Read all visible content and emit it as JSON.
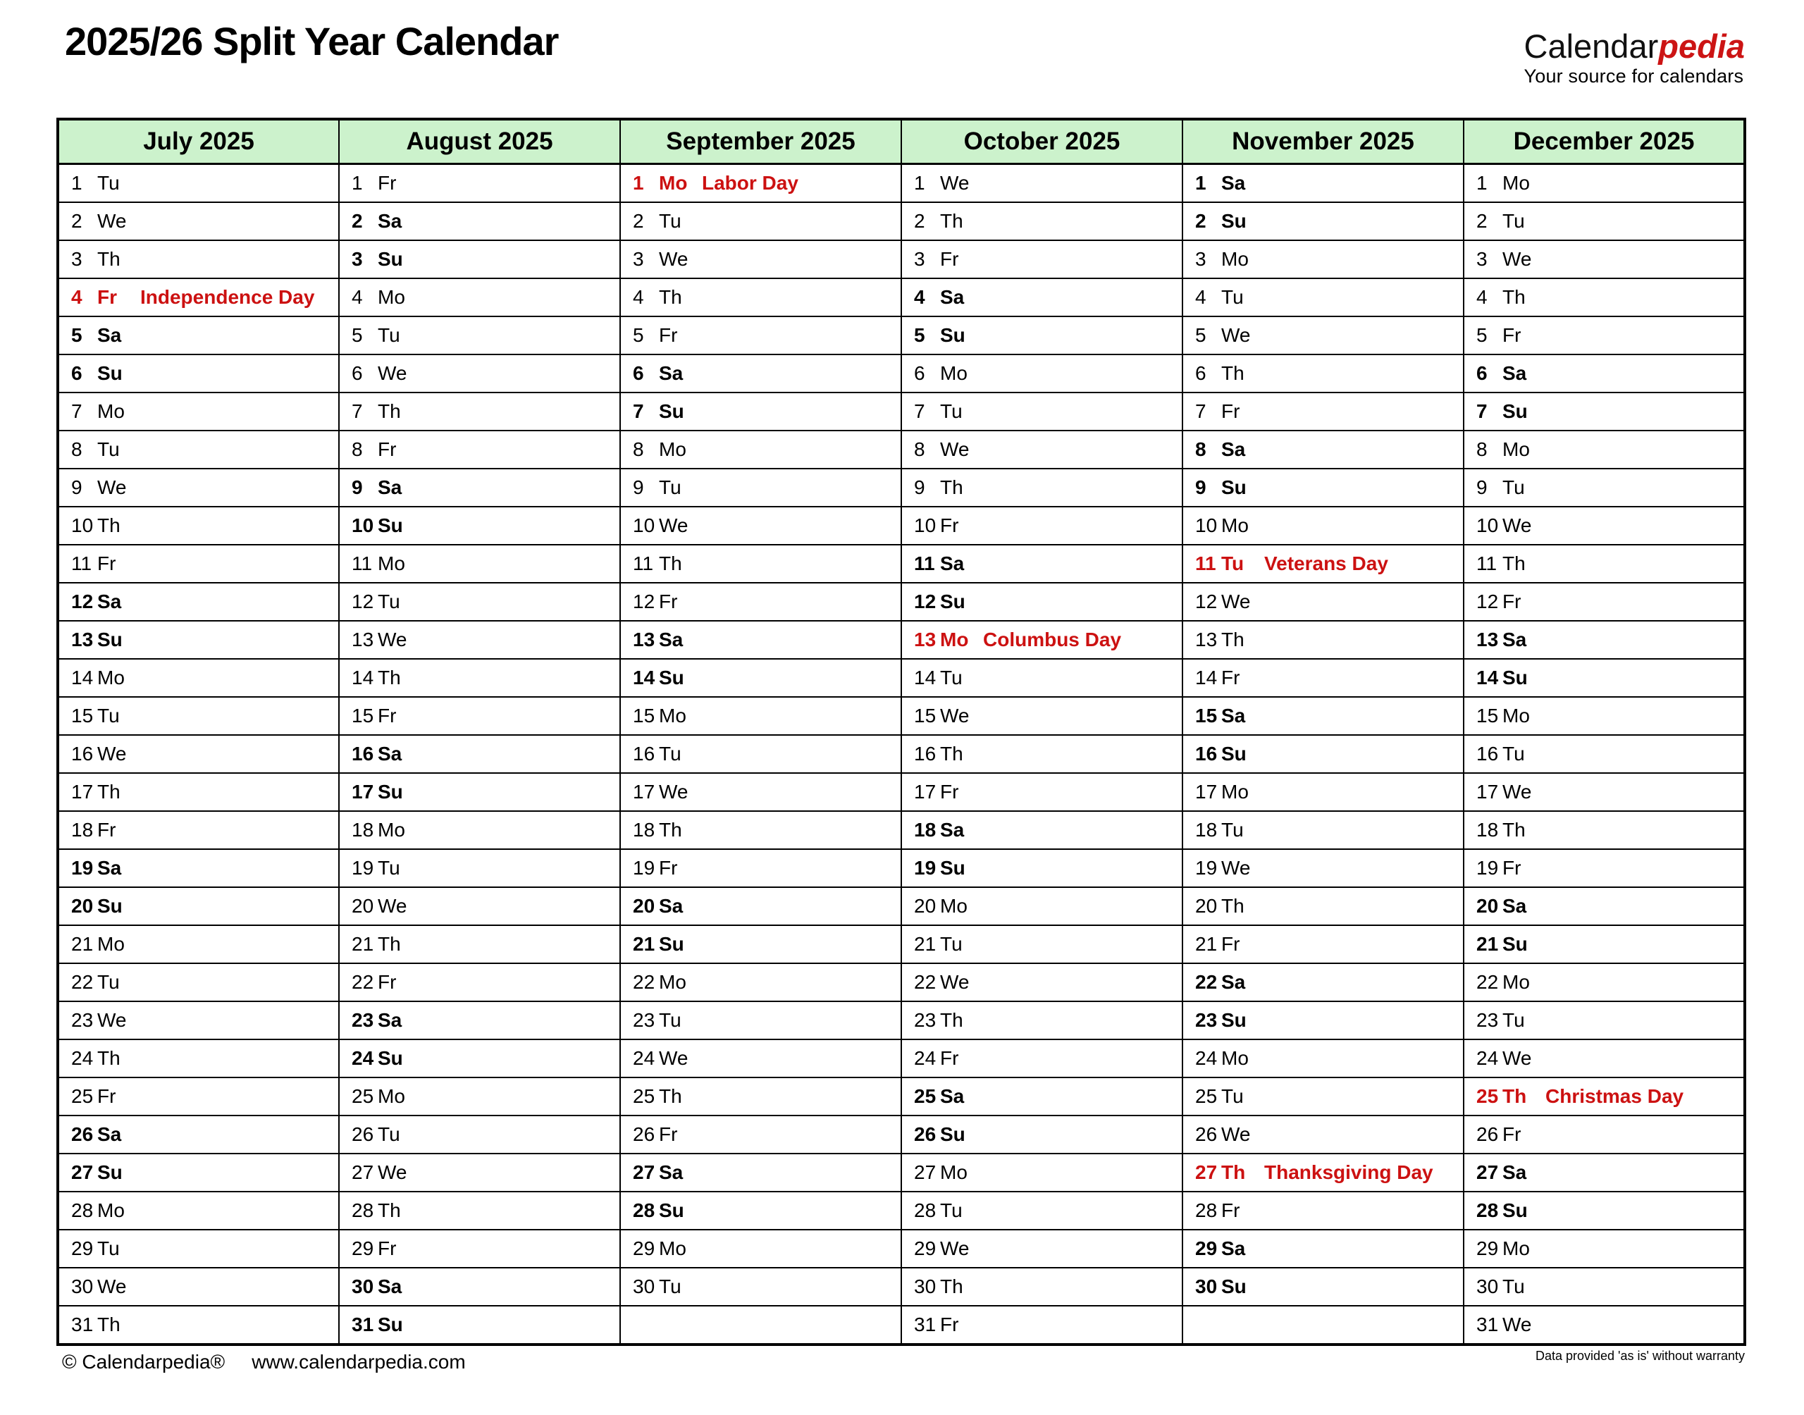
{
  "page": {
    "title": "2025/26 Split Year Calendar"
  },
  "brand": {
    "name_black": "Calendar",
    "name_red": "pedia",
    "tagline": "Your source for calendars"
  },
  "footer": {
    "copyright": "© Calendarpedia®",
    "url": "www.calendarpedia.com",
    "disclaimer": "Data provided 'as is' without warranty"
  },
  "colors": {
    "month_header_bg": "#ccf2cc",
    "saturday_bg": "#fbfbc9",
    "sunday_bg": "#f9c27e",
    "holiday_bg": "#f8d2d2",
    "holiday_text": "#cc1111",
    "empty_bg": "#dcdcdc",
    "brand_red": "#cc1414",
    "border": "#000000"
  },
  "calendar": {
    "rows": 31,
    "months": [
      {
        "name": "July 2025",
        "days": [
          [
            "1",
            "Tu",
            ""
          ],
          [
            "2",
            "We",
            ""
          ],
          [
            "3",
            "Th",
            ""
          ],
          [
            "4",
            "Fr",
            "Independence Day"
          ],
          [
            "5",
            "Sa",
            ""
          ],
          [
            "6",
            "Su",
            ""
          ],
          [
            "7",
            "Mo",
            ""
          ],
          [
            "8",
            "Tu",
            ""
          ],
          [
            "9",
            "We",
            ""
          ],
          [
            "10",
            "Th",
            ""
          ],
          [
            "11",
            "Fr",
            ""
          ],
          [
            "12",
            "Sa",
            ""
          ],
          [
            "13",
            "Su",
            ""
          ],
          [
            "14",
            "Mo",
            ""
          ],
          [
            "15",
            "Tu",
            ""
          ],
          [
            "16",
            "We",
            ""
          ],
          [
            "17",
            "Th",
            ""
          ],
          [
            "18",
            "Fr",
            ""
          ],
          [
            "19",
            "Sa",
            ""
          ],
          [
            "20",
            "Su",
            ""
          ],
          [
            "21",
            "Mo",
            ""
          ],
          [
            "22",
            "Tu",
            ""
          ],
          [
            "23",
            "We",
            ""
          ],
          [
            "24",
            "Th",
            ""
          ],
          [
            "25",
            "Fr",
            ""
          ],
          [
            "26",
            "Sa",
            ""
          ],
          [
            "27",
            "Su",
            ""
          ],
          [
            "28",
            "Mo",
            ""
          ],
          [
            "29",
            "Tu",
            ""
          ],
          [
            "30",
            "We",
            ""
          ],
          [
            "31",
            "Th",
            ""
          ]
        ]
      },
      {
        "name": "August 2025",
        "days": [
          [
            "1",
            "Fr",
            ""
          ],
          [
            "2",
            "Sa",
            ""
          ],
          [
            "3",
            "Su",
            ""
          ],
          [
            "4",
            "Mo",
            ""
          ],
          [
            "5",
            "Tu",
            ""
          ],
          [
            "6",
            "We",
            ""
          ],
          [
            "7",
            "Th",
            ""
          ],
          [
            "8",
            "Fr",
            ""
          ],
          [
            "9",
            "Sa",
            ""
          ],
          [
            "10",
            "Su",
            ""
          ],
          [
            "11",
            "Mo",
            ""
          ],
          [
            "12",
            "Tu",
            ""
          ],
          [
            "13",
            "We",
            ""
          ],
          [
            "14",
            "Th",
            ""
          ],
          [
            "15",
            "Fr",
            ""
          ],
          [
            "16",
            "Sa",
            ""
          ],
          [
            "17",
            "Su",
            ""
          ],
          [
            "18",
            "Mo",
            ""
          ],
          [
            "19",
            "Tu",
            ""
          ],
          [
            "20",
            "We",
            ""
          ],
          [
            "21",
            "Th",
            ""
          ],
          [
            "22",
            "Fr",
            ""
          ],
          [
            "23",
            "Sa",
            ""
          ],
          [
            "24",
            "Su",
            ""
          ],
          [
            "25",
            "Mo",
            ""
          ],
          [
            "26",
            "Tu",
            ""
          ],
          [
            "27",
            "We",
            ""
          ],
          [
            "28",
            "Th",
            ""
          ],
          [
            "29",
            "Fr",
            ""
          ],
          [
            "30",
            "Sa",
            ""
          ],
          [
            "31",
            "Su",
            ""
          ]
        ]
      },
      {
        "name": "September 2025",
        "days": [
          [
            "1",
            "Mo",
            "Labor Day"
          ],
          [
            "2",
            "Tu",
            ""
          ],
          [
            "3",
            "We",
            ""
          ],
          [
            "4",
            "Th",
            ""
          ],
          [
            "5",
            "Fr",
            ""
          ],
          [
            "6",
            "Sa",
            ""
          ],
          [
            "7",
            "Su",
            ""
          ],
          [
            "8",
            "Mo",
            ""
          ],
          [
            "9",
            "Tu",
            ""
          ],
          [
            "10",
            "We",
            ""
          ],
          [
            "11",
            "Th",
            ""
          ],
          [
            "12",
            "Fr",
            ""
          ],
          [
            "13",
            "Sa",
            ""
          ],
          [
            "14",
            "Su",
            ""
          ],
          [
            "15",
            "Mo",
            ""
          ],
          [
            "16",
            "Tu",
            ""
          ],
          [
            "17",
            "We",
            ""
          ],
          [
            "18",
            "Th",
            ""
          ],
          [
            "19",
            "Fr",
            ""
          ],
          [
            "20",
            "Sa",
            ""
          ],
          [
            "21",
            "Su",
            ""
          ],
          [
            "22",
            "Mo",
            ""
          ],
          [
            "23",
            "Tu",
            ""
          ],
          [
            "24",
            "We",
            ""
          ],
          [
            "25",
            "Th",
            ""
          ],
          [
            "26",
            "Fr",
            ""
          ],
          [
            "27",
            "Sa",
            ""
          ],
          [
            "28",
            "Su",
            ""
          ],
          [
            "29",
            "Mo",
            ""
          ],
          [
            "30",
            "Tu",
            ""
          ]
        ]
      },
      {
        "name": "October 2025",
        "days": [
          [
            "1",
            "We",
            ""
          ],
          [
            "2",
            "Th",
            ""
          ],
          [
            "3",
            "Fr",
            ""
          ],
          [
            "4",
            "Sa",
            ""
          ],
          [
            "5",
            "Su",
            ""
          ],
          [
            "6",
            "Mo",
            ""
          ],
          [
            "7",
            "Tu",
            ""
          ],
          [
            "8",
            "We",
            ""
          ],
          [
            "9",
            "Th",
            ""
          ],
          [
            "10",
            "Fr",
            ""
          ],
          [
            "11",
            "Sa",
            ""
          ],
          [
            "12",
            "Su",
            ""
          ],
          [
            "13",
            "Mo",
            "Columbus Day"
          ],
          [
            "14",
            "Tu",
            ""
          ],
          [
            "15",
            "We",
            ""
          ],
          [
            "16",
            "Th",
            ""
          ],
          [
            "17",
            "Fr",
            ""
          ],
          [
            "18",
            "Sa",
            ""
          ],
          [
            "19",
            "Su",
            ""
          ],
          [
            "20",
            "Mo",
            ""
          ],
          [
            "21",
            "Tu",
            ""
          ],
          [
            "22",
            "We",
            ""
          ],
          [
            "23",
            "Th",
            ""
          ],
          [
            "24",
            "Fr",
            ""
          ],
          [
            "25",
            "Sa",
            ""
          ],
          [
            "26",
            "Su",
            ""
          ],
          [
            "27",
            "Mo",
            ""
          ],
          [
            "28",
            "Tu",
            ""
          ],
          [
            "29",
            "We",
            ""
          ],
          [
            "30",
            "Th",
            ""
          ],
          [
            "31",
            "Fr",
            ""
          ]
        ]
      },
      {
        "name": "November 2025",
        "days": [
          [
            "1",
            "Sa",
            ""
          ],
          [
            "2",
            "Su",
            ""
          ],
          [
            "3",
            "Mo",
            ""
          ],
          [
            "4",
            "Tu",
            ""
          ],
          [
            "5",
            "We",
            ""
          ],
          [
            "6",
            "Th",
            ""
          ],
          [
            "7",
            "Fr",
            ""
          ],
          [
            "8",
            "Sa",
            ""
          ],
          [
            "9",
            "Su",
            ""
          ],
          [
            "10",
            "Mo",
            ""
          ],
          [
            "11",
            "Tu",
            "Veterans Day"
          ],
          [
            "12",
            "We",
            ""
          ],
          [
            "13",
            "Th",
            ""
          ],
          [
            "14",
            "Fr",
            ""
          ],
          [
            "15",
            "Sa",
            ""
          ],
          [
            "16",
            "Su",
            ""
          ],
          [
            "17",
            "Mo",
            ""
          ],
          [
            "18",
            "Tu",
            ""
          ],
          [
            "19",
            "We",
            ""
          ],
          [
            "20",
            "Th",
            ""
          ],
          [
            "21",
            "Fr",
            ""
          ],
          [
            "22",
            "Sa",
            ""
          ],
          [
            "23",
            "Su",
            ""
          ],
          [
            "24",
            "Mo",
            ""
          ],
          [
            "25",
            "Tu",
            ""
          ],
          [
            "26",
            "We",
            ""
          ],
          [
            "27",
            "Th",
            "Thanksgiving Day"
          ],
          [
            "28",
            "Fr",
            ""
          ],
          [
            "29",
            "Sa",
            ""
          ],
          [
            "30",
            "Su",
            ""
          ]
        ]
      },
      {
        "name": "December 2025",
        "days": [
          [
            "1",
            "Mo",
            ""
          ],
          [
            "2",
            "Tu",
            ""
          ],
          [
            "3",
            "We",
            ""
          ],
          [
            "4",
            "Th",
            ""
          ],
          [
            "5",
            "Fr",
            ""
          ],
          [
            "6",
            "Sa",
            ""
          ],
          [
            "7",
            "Su",
            ""
          ],
          [
            "8",
            "Mo",
            ""
          ],
          [
            "9",
            "Tu",
            ""
          ],
          [
            "10",
            "We",
            ""
          ],
          [
            "11",
            "Th",
            ""
          ],
          [
            "12",
            "Fr",
            ""
          ],
          [
            "13",
            "Sa",
            ""
          ],
          [
            "14",
            "Su",
            ""
          ],
          [
            "15",
            "Mo",
            ""
          ],
          [
            "16",
            "Tu",
            ""
          ],
          [
            "17",
            "We",
            ""
          ],
          [
            "18",
            "Th",
            ""
          ],
          [
            "19",
            "Fr",
            ""
          ],
          [
            "20",
            "Sa",
            ""
          ],
          [
            "21",
            "Su",
            ""
          ],
          [
            "22",
            "Mo",
            ""
          ],
          [
            "23",
            "Tu",
            ""
          ],
          [
            "24",
            "We",
            ""
          ],
          [
            "25",
            "Th",
            "Christmas Day"
          ],
          [
            "26",
            "Fr",
            ""
          ],
          [
            "27",
            "Sa",
            ""
          ],
          [
            "28",
            "Su",
            ""
          ],
          [
            "29",
            "Mo",
            ""
          ],
          [
            "30",
            "Tu",
            ""
          ],
          [
            "31",
            "We",
            ""
          ]
        ]
      }
    ]
  }
}
